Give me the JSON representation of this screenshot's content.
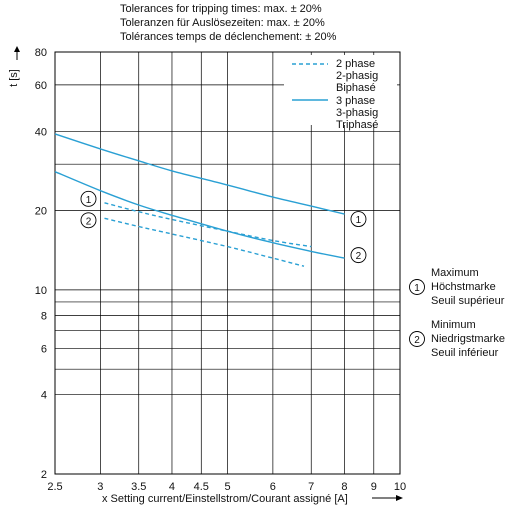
{
  "tolerances": [
    "Tolerances for tripping times: max. ± 20%",
    "Toleranzen für Auslösezeiten: max. ± 20%",
    "Tolérances temps de déclenchement: ± 20%"
  ],
  "colors": {
    "curve": "#2aa0d4",
    "grid": "#000000",
    "text": "#111111"
  },
  "markers": {
    "upper": {
      "symbol": "1",
      "lines": [
        "Maximum",
        "Höchstmarke",
        "Seuil supérieur"
      ]
    },
    "lower": {
      "symbol": "2",
      "lines": [
        "Minimum",
        "Niedrigstmarke",
        "Seuil inférieur"
      ]
    }
  },
  "chart_data": {
    "type": "line",
    "xscale": "log",
    "yscale": "log",
    "xlim": [
      2.5,
      10
    ],
    "ylim": [
      2,
      80
    ],
    "xlabel": "x Setting current/Einstellstrom/Courant assigné [A]",
    "ylabel": "t [s]",
    "x_ticks": [
      {
        "value": 2.5,
        "label": "2.5"
      },
      {
        "value": 3,
        "label": "3"
      },
      {
        "value": 3.5,
        "label": "3.5"
      },
      {
        "value": 4,
        "label": "4"
      },
      {
        "value": 4.5,
        "label": "4.5"
      },
      {
        "value": 5,
        "label": "5"
      },
      {
        "value": 6,
        "label": "6"
      },
      {
        "value": 7,
        "label": "7"
      },
      {
        "value": 8,
        "label": "8"
      },
      {
        "value": 9,
        "label": "9"
      },
      {
        "value": 10,
        "label": "10"
      }
    ],
    "y_ticks": [
      {
        "value": 2,
        "label": "2"
      },
      {
        "value": 4,
        "label": "4"
      },
      {
        "value": 6,
        "label": "6"
      },
      {
        "value": 8,
        "label": "8"
      },
      {
        "value": 10,
        "label": "10"
      },
      {
        "value": 20,
        "label": "20"
      },
      {
        "value": 40,
        "label": "40"
      },
      {
        "value": 60,
        "label": "60"
      },
      {
        "value": 80,
        "label": "80"
      }
    ],
    "y_minor": [
      5,
      7,
      9,
      30
    ],
    "grid": true,
    "legend": {
      "placement": "top-right",
      "entries": [
        {
          "style": "dashed",
          "lines": [
            "2 phase",
            "2-phasig",
            "Biphasé"
          ]
        },
        {
          "style": "solid",
          "lines": [
            "3 phase",
            "3-phasig",
            "Triphasé"
          ]
        }
      ]
    },
    "series": [
      {
        "group": "3 phase",
        "marker": "1",
        "style": "solid",
        "x": [
          2.5,
          3,
          3.5,
          4,
          5,
          6,
          7,
          8
        ],
        "y": [
          39.1,
          34.3,
          30.9,
          28.3,
          25.0,
          22.5,
          20.8,
          19.4
        ]
      },
      {
        "group": "3 phase",
        "marker": "2",
        "style": "solid",
        "x": [
          2.5,
          3,
          3.5,
          4,
          5,
          6,
          7,
          8
        ],
        "y": [
          28.1,
          23.8,
          21.0,
          19.2,
          16.7,
          15.1,
          14.0,
          13.2
        ]
      },
      {
        "group": "2 phase",
        "marker": "1",
        "style": "dashed",
        "x": [
          3.05,
          3.5,
          4,
          5,
          6,
          7
        ],
        "y": [
          21.4,
          19.8,
          18.5,
          16.7,
          15.4,
          14.6
        ]
      },
      {
        "group": "2 phase",
        "marker": "2",
        "style": "dashed",
        "x": [
          3.05,
          3.5,
          4,
          5,
          6,
          6.8
        ],
        "y": [
          18.7,
          17.4,
          16.3,
          14.6,
          13.2,
          12.3
        ]
      }
    ]
  }
}
